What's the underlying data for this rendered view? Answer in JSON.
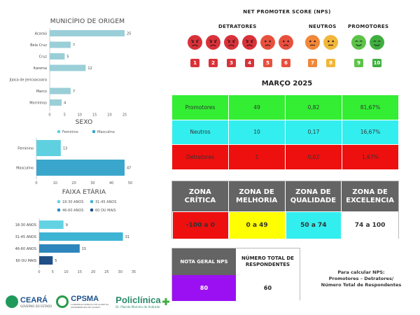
{
  "chart_data": [
    {
      "type": "bar",
      "orientation": "horizontal",
      "title": "MUNICÍPIO DE ORIGEM",
      "categories": [
        "Acaraú",
        "Bela Cruz",
        "Cruz",
        "Itarema",
        "Jijoca de Jericoacoara",
        "Marco",
        "Morrinhos"
      ],
      "values": [
        25,
        7,
        5,
        12,
        0,
        7,
        4
      ],
      "data_labels": [
        "25",
        "7",
        "5",
        "12",
        "",
        "7",
        "4"
      ],
      "xlim": [
        0,
        25
      ],
      "xticks": [
        0,
        5,
        10,
        15,
        20,
        25
      ],
      "grid": false,
      "color": "#9acfd8"
    },
    {
      "type": "bar",
      "orientation": "horizontal",
      "title": "SEXO",
      "legend": {
        "placement": "top",
        "entries": [
          {
            "name": "Feminino",
            "color": "#5fd0e0"
          },
          {
            "name": "Masculino",
            "color": "#3aa6cc"
          }
        ]
      },
      "categories": [
        "Feminino",
        "Masculino"
      ],
      "values": [
        13,
        47
      ],
      "colors": [
        "#5fd0e0",
        "#3aa6cc"
      ],
      "xlim": [
        0,
        50
      ],
      "xticks": [
        0,
        10,
        20,
        30,
        40,
        50
      ],
      "grid": false
    },
    {
      "type": "bar",
      "orientation": "horizontal",
      "title": "FAIXA ETÁRIA",
      "legend": {
        "placement": "top",
        "entries": [
          {
            "name": "18-30 ANOS",
            "color": "#63d3e3"
          },
          {
            "name": "31-45 ANOS",
            "color": "#3eb4d4"
          },
          {
            "name": "46-60 ANOS",
            "color": "#2e86bd"
          },
          {
            "name": "60 OU MAIS",
            "color": "#1f4f86"
          }
        ]
      },
      "categories": [
        "18-30 ANOS",
        "31-45 ANOS",
        "46-60 ANOS",
        "60 OU MAIS"
      ],
      "values": [
        9,
        31,
        15,
        5
      ],
      "colors": [
        "#63d3e3",
        "#3eb4d4",
        "#2e86bd",
        "#1f4f86"
      ],
      "xlim": [
        0,
        35
      ],
      "xticks": [
        0,
        5,
        10,
        15,
        20,
        25,
        30,
        35
      ],
      "grid": false
    },
    {
      "type": "table",
      "title": "MARÇO 2025",
      "rows": [
        {
          "label": "Promotores",
          "count": "49",
          "fraction": "0,82",
          "percent": "81,67%",
          "color": "#33ee33"
        },
        {
          "label": "Neutros",
          "count": "10",
          "fraction": "0,17",
          "percent": "16,67%",
          "color": "#33eeee"
        },
        {
          "label": "Detratores",
          "count": "1",
          "fraction": "0,02",
          "percent": "1,67%",
          "color": "#ee0f0f"
        }
      ]
    }
  ],
  "nps": {
    "title": "NET PROMOTER SCORE (NPS)",
    "groups": [
      "DETRATORES",
      "NEUTROS",
      "PROMOTORES"
    ],
    "scores": [
      {
        "n": "1",
        "face": "angry-face-icon",
        "color": "#d9323a"
      },
      {
        "n": "2",
        "face": "angry-face-icon",
        "color": "#d9323a"
      },
      {
        "n": "3",
        "face": "angry-face-icon",
        "color": "#d9323a"
      },
      {
        "n": "4",
        "face": "angry-face-icon",
        "color": "#d9323a"
      },
      {
        "n": "5",
        "face": "sad-face-icon",
        "color": "#e8503e"
      },
      {
        "n": "6",
        "face": "sad-face-icon",
        "color": "#e8503e"
      },
      {
        "n": "7",
        "face": "neutral-face-icon",
        "color": "#f0883a"
      },
      {
        "n": "8",
        "face": "neutral-face-icon",
        "color": "#f0b73a"
      },
      {
        "n": "9",
        "face": "smile-face-icon",
        "color": "#5ec24a"
      },
      {
        "n": "10",
        "face": "smile-face-icon",
        "color": "#3fae3f"
      }
    ]
  },
  "zonas": [
    {
      "label_line1": "ZONA",
      "label_line2": "CRÍTICA",
      "range": "-100 a 0",
      "color": "#ee0f0f"
    },
    {
      "label_line1": "ZONA DE",
      "label_line2": "MELHORIA",
      "range": "0 a 49",
      "color": "#ffff00"
    },
    {
      "label_line1": "ZONA DE",
      "label_line2": "QUALIDADE",
      "range": "50 a 74",
      "color": "#33eeee"
    },
    {
      "label_line1": "ZONA DE",
      "label_line2": "EXCELENCIA",
      "range": "74 a 100",
      "color": "#ffffff"
    }
  ],
  "nota": {
    "nps_label": "NOTA GERAL NPS",
    "nps_value": "80",
    "total_label": "NÚMERO TOTAL DE RESPONDENTES",
    "total_value": "60"
  },
  "calc_note": {
    "line1": "Para calcular NPS:",
    "line2": "Promotores – Detratores/",
    "line3": "Número Total de Respondentes"
  },
  "logos": {
    "ceara": "CEARÁ",
    "ceara_sub": "GOVERNO DO ESTADO",
    "cpsma": "CPSMA",
    "cpsma_sub": "CONSÓRCIO PÚBLICO DE SAÚDE DA MICRORREGIÃO DE ACARAÚ",
    "policlinica": "Policlínica",
    "policlinica_sub": "Dr. Plácido Marinho de Andrade"
  }
}
